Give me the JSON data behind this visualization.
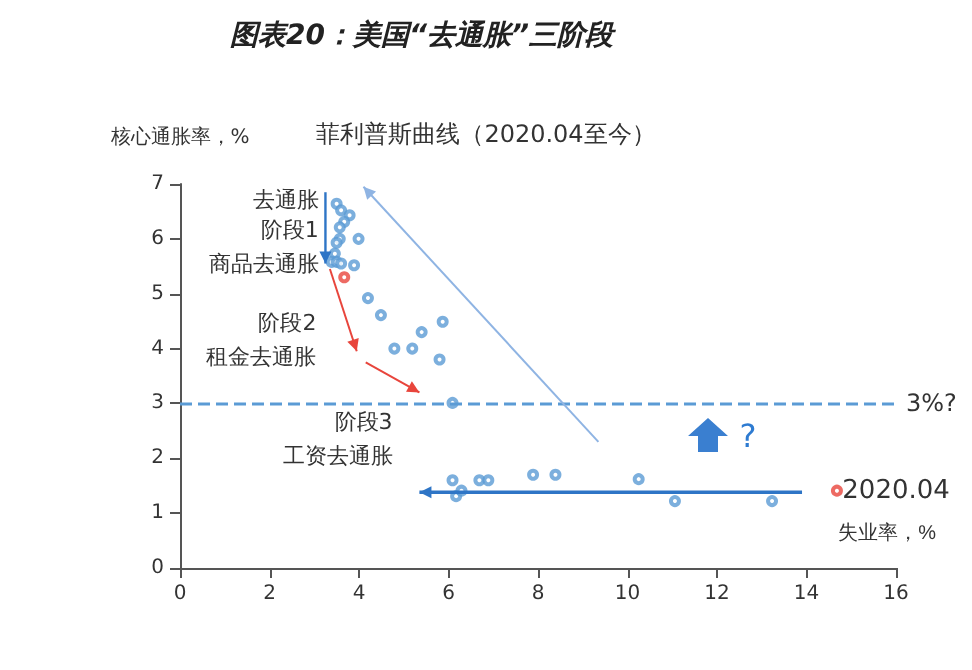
{
  "chart_data": {
    "type": "scatter",
    "title": "图表20：美国“去通胀”三阶段",
    "subtitle": "菲利普斯曲线（2020.04至今）",
    "xlabel": "失业率，%",
    "ylabel": "核心通胀率，%",
    "xlim": [
      0,
      16
    ],
    "xticks": [
      0,
      2,
      4,
      6,
      8,
      10,
      12,
      14,
      16
    ],
    "ylim": [
      0,
      7
    ],
    "yticks": [
      0,
      1,
      2,
      3,
      4,
      5,
      6,
      7
    ],
    "grid": false,
    "marker": "circle",
    "series": [
      {
        "color": "#5b9bd5",
        "x": [
          3.5,
          3.6,
          3.79,
          3.67,
          3.57,
          3.57,
          3.5,
          3.99,
          3.46,
          3.39,
          3.5,
          3.6,
          3.89,
          4.2,
          4.49,
          4.79,
          5.19,
          5.4,
          5.87,
          5.8,
          6.09,
          6.09,
          6.17,
          6.29,
          6.69,
          6.89,
          7.89,
          8.39,
          10.25,
          11.06,
          13.23
        ],
        "values": [
          6.64,
          6.52,
          6.43,
          6.31,
          6.21,
          6.0,
          5.93,
          6.0,
          5.73,
          5.58,
          5.58,
          5.55,
          5.52,
          4.92,
          4.61,
          4.0,
          4.0,
          4.3,
          4.49,
          3.8,
          3.01,
          1.6,
          1.31,
          1.41,
          1.6,
          1.6,
          1.7,
          1.7,
          1.62,
          1.22,
          1.22
        ]
      },
      {
        "color": "#e8453c",
        "x": [
          3.67,
          14.68
        ],
        "values": [
          5.3,
          1.41
        ]
      }
    ],
    "ref_lines": [
      {
        "axis": "y",
        "value": 3,
        "label": "3%?",
        "color": "#5b9bd5",
        "line_style": "dashed"
      }
    ],
    "annotations": [
      "去通胀",
      "阶段1\n商品去通胀",
      "阶段2\n租金去通胀",
      "阶段3\n工资去通胀",
      "?",
      {
        "text": "2020.04",
        "x": 14.8,
        "y": 1.41
      }
    ]
  }
}
